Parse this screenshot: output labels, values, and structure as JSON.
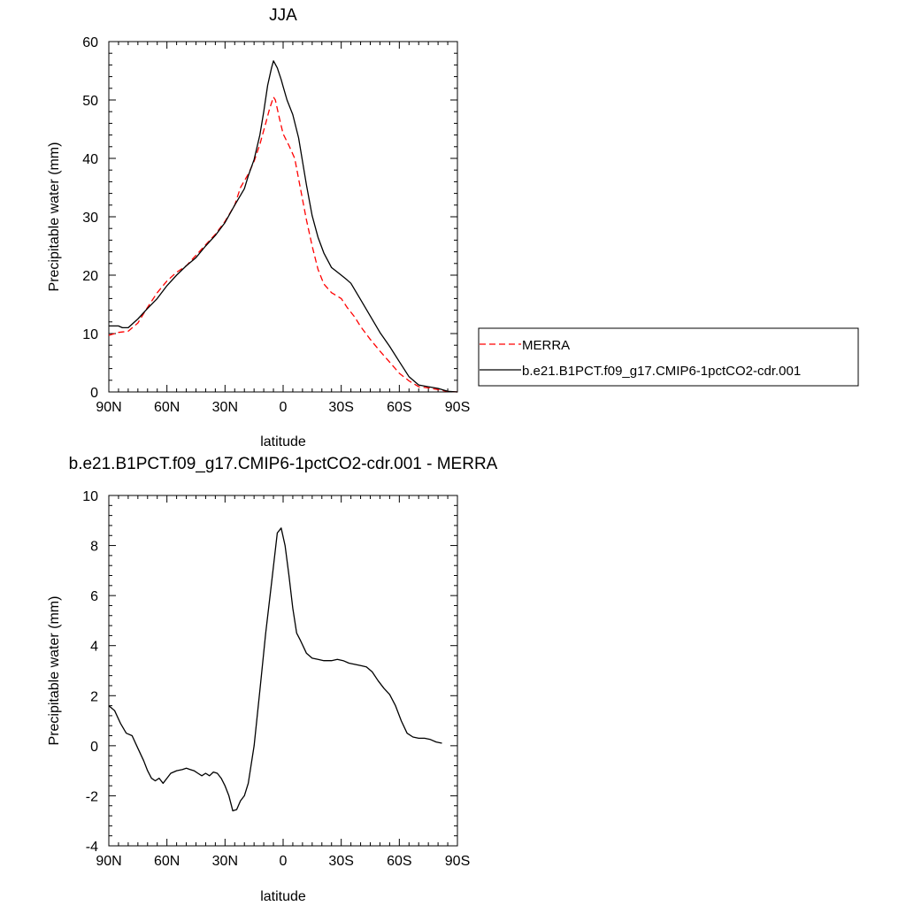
{
  "chart_data": [
    {
      "type": "line",
      "title": "JJA",
      "xlabel": "latitude",
      "ylabel": "Precipitable water (mm)",
      "xlim": [
        90,
        -90
      ],
      "ylim": [
        0,
        60
      ],
      "x_ticks": [
        {
          "value": 90,
          "label": "90N"
        },
        {
          "value": 60,
          "label": "60N"
        },
        {
          "value": 30,
          "label": "30N"
        },
        {
          "value": 0,
          "label": "0"
        },
        {
          "value": -30,
          "label": "30S"
        },
        {
          "value": -60,
          "label": "60S"
        },
        {
          "value": -90,
          "label": "90S"
        }
      ],
      "y_ticks": [
        0,
        10,
        20,
        30,
        40,
        50,
        60
      ],
      "legend_position": "right",
      "series": [
        {
          "name": "MERRA",
          "style": "dashed",
          "color": "#ff0000",
          "points": [
            [
              90,
              9.7
            ],
            [
              85,
              10.2
            ],
            [
              80,
              10.4
            ],
            [
              75,
              11.8
            ],
            [
              70,
              14.5
            ],
            [
              65,
              17.0
            ],
            [
              60,
              19.0
            ],
            [
              55,
              20.5
            ],
            [
              50,
              21.6
            ],
            [
              45,
              23.4
            ],
            [
              40,
              25.2
            ],
            [
              35,
              27.0
            ],
            [
              30,
              29.2
            ],
            [
              25,
              32.0
            ],
            [
              22,
              35.0
            ],
            [
              18,
              37.3
            ],
            [
              15,
              39.5
            ],
            [
              12,
              42.4
            ],
            [
              9,
              46.0
            ],
            [
              7,
              48.5
            ],
            [
              5,
              50.5
            ],
            [
              4,
              50.0
            ],
            [
              2,
              47.0
            ],
            [
              0,
              44.2
            ],
            [
              -3,
              42.2
            ],
            [
              -6,
              40.0
            ],
            [
              -8,
              36.5
            ],
            [
              -10,
              33.0
            ],
            [
              -12,
              29.5
            ],
            [
              -15,
              25.0
            ],
            [
              -18,
              21.0
            ],
            [
              -21,
              18.5
            ],
            [
              -25,
              17.0
            ],
            [
              -30,
              16.0
            ],
            [
              -33,
              14.5
            ],
            [
              -37,
              12.8
            ],
            [
              -40,
              11.2
            ],
            [
              -45,
              9.0
            ],
            [
              -50,
              7.0
            ],
            [
              -55,
              5.1
            ],
            [
              -60,
              3.2
            ],
            [
              -65,
              1.9
            ],
            [
              -70,
              0.9
            ],
            [
              -75,
              0.7
            ],
            [
              -80,
              0.4
            ],
            [
              -85,
              0.1
            ],
            [
              -90,
              0.0
            ]
          ]
        },
        {
          "name": "b.e21.B1PCT.f09_g17.CMIP6-1pctCO2-cdr.001",
          "style": "solid",
          "color": "#000000",
          "points": [
            [
              90,
              11.3
            ],
            [
              85,
              11.3
            ],
            [
              83,
              11.0
            ],
            [
              80,
              11.0
            ],
            [
              75,
              12.5
            ],
            [
              70,
              14.3
            ],
            [
              65,
              16.0
            ],
            [
              60,
              18.2
            ],
            [
              55,
              20.0
            ],
            [
              50,
              21.6
            ],
            [
              45,
              23.0
            ],
            [
              40,
              25.0
            ],
            [
              35,
              26.8
            ],
            [
              30,
              29.0
            ],
            [
              25,
              32.0
            ],
            [
              20,
              34.8
            ],
            [
              18,
              37.0
            ],
            [
              15,
              39.8
            ],
            [
              12,
              44.0
            ],
            [
              10,
              48.0
            ],
            [
              8,
              52.5
            ],
            [
              6,
              55.5
            ],
            [
              5,
              56.7
            ],
            [
              3,
              55.5
            ],
            [
              1,
              53.5
            ],
            [
              0,
              52.3
            ],
            [
              -2,
              50.0
            ],
            [
              -5,
              47.5
            ],
            [
              -8,
              43.5
            ],
            [
              -10,
              39.5
            ],
            [
              -12,
              35.5
            ],
            [
              -15,
              30.2
            ],
            [
              -18,
              26.5
            ],
            [
              -21,
              23.8
            ],
            [
              -25,
              21.3
            ],
            [
              -30,
              20.0
            ],
            [
              -33,
              19.2
            ],
            [
              -35,
              18.6
            ],
            [
              -40,
              15.8
            ],
            [
              -45,
              13.0
            ],
            [
              -50,
              10.2
            ],
            [
              -55,
              7.8
            ],
            [
              -60,
              5.2
            ],
            [
              -65,
              2.6
            ],
            [
              -70,
              1.2
            ],
            [
              -75,
              0.9
            ],
            [
              -80,
              0.6
            ],
            [
              -85,
              0.1
            ],
            [
              -90,
              0.0
            ]
          ]
        }
      ]
    },
    {
      "type": "line",
      "title": "b.e21.B1PCT.f09_g17.CMIP6-1pctCO2-cdr.001 - MERRA",
      "xlabel": "latitude",
      "ylabel": "Precipitable water (mm)",
      "xlim": [
        90,
        -90
      ],
      "ylim": [
        -4,
        10
      ],
      "x_ticks": [
        {
          "value": 90,
          "label": "90N"
        },
        {
          "value": 60,
          "label": "60N"
        },
        {
          "value": 30,
          "label": "30N"
        },
        {
          "value": 0,
          "label": "0"
        },
        {
          "value": -30,
          "label": "30S"
        },
        {
          "value": -60,
          "label": "60S"
        },
        {
          "value": -90,
          "label": "90S"
        }
      ],
      "y_ticks": [
        -4,
        -2,
        0,
        2,
        4,
        6,
        8,
        10
      ],
      "series": [
        {
          "style": "solid",
          "color": "#000000",
          "points": [
            [
              90,
              1.6
            ],
            [
              87,
              1.4
            ],
            [
              84,
              0.9
            ],
            [
              81,
              0.5
            ],
            [
              78,
              0.4
            ],
            [
              75,
              -0.1
            ],
            [
              72,
              -0.6
            ],
            [
              70,
              -1.0
            ],
            [
              68,
              -1.3
            ],
            [
              66,
              -1.4
            ],
            [
              64,
              -1.3
            ],
            [
              62,
              -1.5
            ],
            [
              60,
              -1.3
            ],
            [
              58,
              -1.1
            ],
            [
              55,
              -1.0
            ],
            [
              52,
              -0.95
            ],
            [
              50,
              -0.9
            ],
            [
              48,
              -0.95
            ],
            [
              46,
              -1.0
            ],
            [
              44,
              -1.1
            ],
            [
              42,
              -1.2
            ],
            [
              40,
              -1.1
            ],
            [
              38,
              -1.2
            ],
            [
              36,
              -1.05
            ],
            [
              34,
              -1.1
            ],
            [
              32,
              -1.3
            ],
            [
              30,
              -1.6
            ],
            [
              28,
              -2.0
            ],
            [
              26,
              -2.6
            ],
            [
              24,
              -2.55
            ],
            [
              22,
              -2.2
            ],
            [
              20,
              -2.0
            ],
            [
              18,
              -1.5
            ],
            [
              15,
              0.0
            ],
            [
              12,
              2.2
            ],
            [
              9,
              4.5
            ],
            [
              6,
              6.5
            ],
            [
              3,
              8.5
            ],
            [
              1,
              8.7
            ],
            [
              -1,
              8.0
            ],
            [
              -3,
              6.8
            ],
            [
              -5,
              5.5
            ],
            [
              -7,
              4.5
            ],
            [
              -9,
              4.2
            ],
            [
              -12,
              3.7
            ],
            [
              -15,
              3.5
            ],
            [
              -18,
              3.45
            ],
            [
              -21,
              3.4
            ],
            [
              -25,
              3.4
            ],
            [
              -28,
              3.45
            ],
            [
              -31,
              3.4
            ],
            [
              -34,
              3.3
            ],
            [
              -37,
              3.25
            ],
            [
              -40,
              3.2
            ],
            [
              -43,
              3.15
            ],
            [
              -46,
              2.95
            ],
            [
              -49,
              2.6
            ],
            [
              -52,
              2.3
            ],
            [
              -55,
              2.05
            ],
            [
              -58,
              1.6
            ],
            [
              -61,
              1.0
            ],
            [
              -64,
              0.5
            ],
            [
              -67,
              0.35
            ],
            [
              -70,
              0.3
            ],
            [
              -73,
              0.3
            ],
            [
              -76,
              0.25
            ],
            [
              -79,
              0.15
            ],
            [
              -82,
              0.1
            ]
          ]
        }
      ]
    }
  ]
}
